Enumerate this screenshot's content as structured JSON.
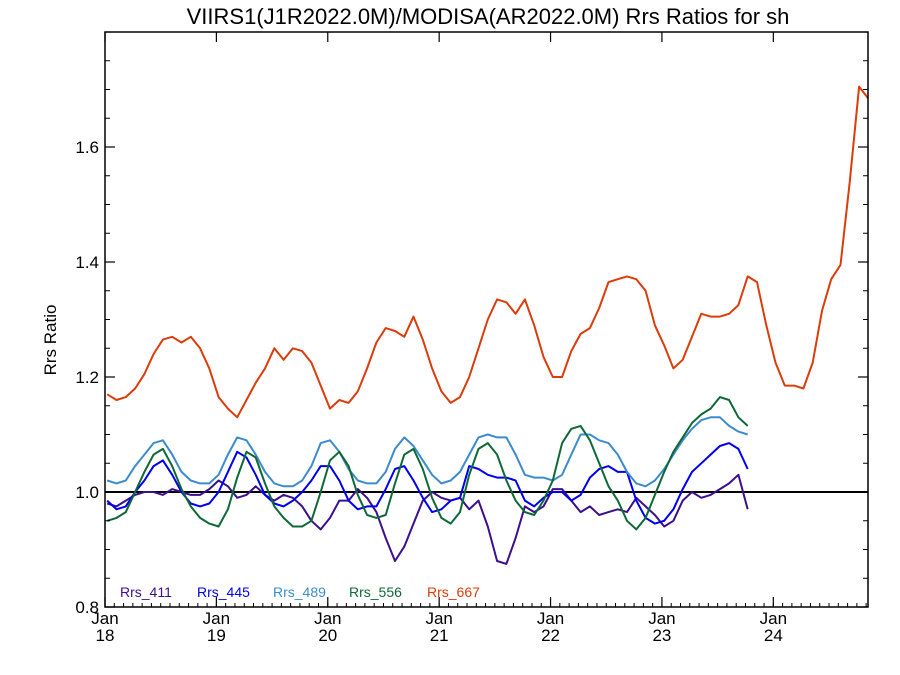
{
  "chart_data": {
    "type": "line",
    "title": "VIIRS1(J1R2022.0M)/MODISA(AR2022.0M)  Rrs Ratios for sh",
    "xlabel": "",
    "ylabel": "Rrs Ratio",
    "xlim": [
      2018.0,
      2024.85
    ],
    "ylim": [
      0.8,
      1.8
    ],
    "yticks": [
      0.8,
      1.0,
      1.2,
      1.4,
      1.6
    ],
    "ytick_labels": [
      "0.8",
      "1.0",
      "1.2",
      "1.4",
      "1.6"
    ],
    "xticks": [
      2018,
      2019,
      2020,
      2021,
      2022,
      2023,
      2024
    ],
    "xtick_labels": [
      [
        "Jan",
        "18"
      ],
      [
        "Jan",
        "19"
      ],
      [
        "Jan",
        "20"
      ],
      [
        "Jan",
        "21"
      ],
      [
        "Jan",
        "22"
      ],
      [
        "Jan",
        "23"
      ],
      [
        "Jan",
        "24"
      ]
    ],
    "reference_line": 1.0,
    "legend_position": "bottom-left, inside plot",
    "x_step_months": 1,
    "series": [
      {
        "name": "Rrs_411",
        "color": "#3c0f8c",
        "values": [
          0.98,
          0.975,
          0.985,
          0.995,
          1.0,
          1.0,
          0.995,
          1.005,
          1.0,
          0.995,
          0.995,
          1.005,
          1.02,
          1.01,
          0.99,
          0.995,
          1.01,
          0.995,
          0.985,
          0.995,
          0.99,
          0.975,
          0.95,
          0.935,
          0.955,
          0.985,
          0.985,
          1.005,
          0.99,
          0.965,
          0.92,
          0.88,
          0.905,
          0.945,
          0.985,
          1.0,
          0.99,
          0.985,
          0.99,
          0.97,
          0.985,
          0.94,
          0.88,
          0.875,
          0.92,
          0.975,
          0.965,
          0.975,
          1.005,
          1.005,
          0.985,
          0.965,
          0.975,
          0.96,
          0.965,
          0.97,
          0.965,
          0.99,
          0.975,
          0.96,
          0.94,
          0.95,
          0.985,
          1.0,
          0.99,
          0.995,
          1.005,
          1.015,
          1.03,
          0.97
        ]
      },
      {
        "name": "Rrs_445",
        "color": "#0000f0",
        "values": [
          0.985,
          0.97,
          0.975,
          1.0,
          1.02,
          1.045,
          1.055,
          1.03,
          1.0,
          0.98,
          0.975,
          0.98,
          1.0,
          1.035,
          1.07,
          1.06,
          1.03,
          0.995,
          0.98,
          0.975,
          0.985,
          1.0,
          1.02,
          1.045,
          1.045,
          1.02,
          0.985,
          0.97,
          0.975,
          0.975,
          1.005,
          1.04,
          1.045,
          1.02,
          0.99,
          0.965,
          0.97,
          0.985,
          0.99,
          1.045,
          1.04,
          1.03,
          1.025,
          1.025,
          1.02,
          0.985,
          0.975,
          0.99,
          1.0,
          1.0,
          0.985,
          0.995,
          1.025,
          1.04,
          1.045,
          1.035,
          1.035,
          0.985,
          0.955,
          0.945,
          0.95,
          0.97,
          1.005,
          1.035,
          1.05,
          1.065,
          1.08,
          1.085,
          1.075,
          1.04
        ]
      },
      {
        "name": "Rrs_489",
        "color": "#3c8ccd",
        "values": [
          1.02,
          1.015,
          1.02,
          1.045,
          1.065,
          1.085,
          1.09,
          1.065,
          1.035,
          1.02,
          1.015,
          1.015,
          1.03,
          1.065,
          1.095,
          1.09,
          1.065,
          1.035,
          1.015,
          1.01,
          1.01,
          1.02,
          1.045,
          1.085,
          1.09,
          1.07,
          1.04,
          1.02,
          1.015,
          1.015,
          1.035,
          1.075,
          1.095,
          1.08,
          1.055,
          1.03,
          1.015,
          1.02,
          1.035,
          1.065,
          1.095,
          1.1,
          1.095,
          1.095,
          1.065,
          1.03,
          1.025,
          1.025,
          1.02,
          1.03,
          1.065,
          1.1,
          1.1,
          1.09,
          1.085,
          1.065,
          1.035,
          1.015,
          1.01,
          1.02,
          1.04,
          1.065,
          1.09,
          1.11,
          1.125,
          1.13,
          1.13,
          1.115,
          1.105,
          1.1
        ]
      },
      {
        "name": "Rrs_556",
        "color": "#0f6937",
        "values": [
          0.95,
          0.955,
          0.965,
          1.0,
          1.035,
          1.065,
          1.075,
          1.045,
          1.005,
          0.975,
          0.955,
          0.945,
          0.94,
          0.97,
          1.025,
          1.07,
          1.06,
          1.015,
          0.975,
          0.955,
          0.94,
          0.94,
          0.95,
          1.0,
          1.055,
          1.07,
          1.045,
          0.995,
          0.96,
          0.955,
          0.96,
          1.015,
          1.065,
          1.075,
          1.04,
          0.99,
          0.955,
          0.945,
          0.965,
          1.03,
          1.075,
          1.085,
          1.065,
          1.02,
          0.985,
          0.965,
          0.96,
          0.985,
          1.02,
          1.085,
          1.11,
          1.115,
          1.09,
          1.05,
          1.01,
          0.985,
          0.95,
          0.935,
          0.955,
          0.995,
          1.035,
          1.07,
          1.095,
          1.12,
          1.135,
          1.145,
          1.165,
          1.16,
          1.13,
          1.115
        ]
      },
      {
        "name": "Rrs_667",
        "color": "#dc3c0a",
        "values": [
          1.17,
          1.16,
          1.165,
          1.18,
          1.205,
          1.24,
          1.265,
          1.27,
          1.26,
          1.27,
          1.25,
          1.215,
          1.165,
          1.145,
          1.13,
          1.16,
          1.19,
          1.215,
          1.25,
          1.23,
          1.25,
          1.245,
          1.225,
          1.185,
          1.145,
          1.16,
          1.155,
          1.175,
          1.215,
          1.26,
          1.285,
          1.28,
          1.27,
          1.305,
          1.265,
          1.215,
          1.175,
          1.155,
          1.165,
          1.2,
          1.25,
          1.3,
          1.335,
          1.33,
          1.31,
          1.335,
          1.29,
          1.235,
          1.2,
          1.2,
          1.245,
          1.275,
          1.285,
          1.32,
          1.365,
          1.37,
          1.375,
          1.37,
          1.35,
          1.29,
          1.255,
          1.215,
          1.23,
          1.27,
          1.31,
          1.305,
          1.305,
          1.31,
          1.325,
          1.375,
          1.365,
          1.29,
          1.225,
          1.185,
          1.185,
          1.18,
          1.225,
          1.315,
          1.37,
          1.395,
          1.54,
          1.705,
          1.685
        ]
      }
    ]
  }
}
